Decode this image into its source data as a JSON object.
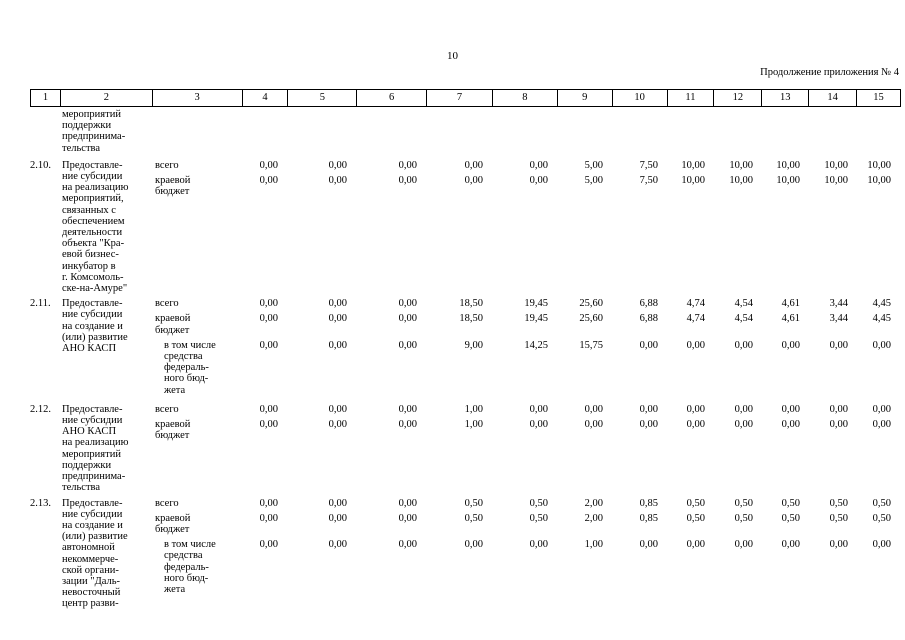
{
  "page": {
    "number": "10",
    "continuation_note": "Продолжение приложения № 4"
  },
  "table": {
    "column_numbers": [
      "1",
      "2",
      "3",
      "4",
      "5",
      "6",
      "7",
      "8",
      "9",
      "10",
      "11",
      "12",
      "13",
      "14",
      "15"
    ],
    "carryover": {
      "num": "",
      "title_lines": [
        "мероприятий",
        "поддержки",
        "предпринима-",
        "тельства"
      ],
      "subrows": []
    },
    "items": [
      {
        "num": "2.10.",
        "title_lines": [
          "Предоставле-",
          "ние субсидии",
          "на реализацию",
          "мероприятий,",
          "связанных с",
          "обеспечением",
          "деятельности",
          "объекта \"Кра-",
          "евой бизнес-",
          "инкубатор в",
          "г. Комсомоль-",
          "ске-на-Амуре\""
        ],
        "subrows": [
          {
            "label_lines": [
              "всего"
            ],
            "indent": false,
            "values": [
              "0,00",
              "0,00",
              "0,00",
              "0,00",
              "0,00",
              "5,00",
              "7,50",
              "10,00",
              "10,00",
              "10,00",
              "10,00",
              "10,00"
            ]
          },
          {
            "label_lines": [
              "краевой",
              "бюджет"
            ],
            "indent": false,
            "values": [
              "0,00",
              "0,00",
              "0,00",
              "0,00",
              "0,00",
              "5,00",
              "7,50",
              "10,00",
              "10,00",
              "10,00",
              "10,00",
              "10,00"
            ]
          }
        ]
      },
      {
        "num": "2.11.",
        "title_lines": [
          "Предоставле-",
          "ние субсидии",
          "на создание и",
          "(или) развитие",
          "АНО КАСП"
        ],
        "subrows": [
          {
            "label_lines": [
              "всего"
            ],
            "indent": false,
            "values": [
              "0,00",
              "0,00",
              "0,00",
              "18,50",
              "19,45",
              "25,60",
              "6,88",
              "4,74",
              "4,54",
              "4,61",
              "3,44",
              "4,45"
            ]
          },
          {
            "label_lines": [
              "краевой",
              "бюджет"
            ],
            "indent": false,
            "values": [
              "0,00",
              "0,00",
              "0,00",
              "18,50",
              "19,45",
              "25,60",
              "6,88",
              "4,74",
              "4,54",
              "4,61",
              "3,44",
              "4,45"
            ]
          },
          {
            "label_lines": [
              "в том числе",
              "средства",
              "федераль-",
              "ного бюд-",
              "жета"
            ],
            "indent": true,
            "values": [
              "0,00",
              "0,00",
              "0,00",
              "9,00",
              "14,25",
              "15,75",
              "0,00",
              "0,00",
              "0,00",
              "0,00",
              "0,00",
              "0,00"
            ]
          }
        ]
      },
      {
        "num": "2.12.",
        "title_lines": [
          "Предоставле-",
          "ние субсидии",
          "АНО КАСП",
          "на реализацию",
          "мероприятий",
          "поддержки",
          "предпринима-",
          "тельства"
        ],
        "subrows": [
          {
            "label_lines": [
              "всего"
            ],
            "indent": false,
            "values": [
              "0,00",
              "0,00",
              "0,00",
              "1,00",
              "0,00",
              "0,00",
              "0,00",
              "0,00",
              "0,00",
              "0,00",
              "0,00",
              "0,00"
            ]
          },
          {
            "label_lines": [
              "краевой",
              "бюджет"
            ],
            "indent": false,
            "values": [
              "0,00",
              "0,00",
              "0,00",
              "1,00",
              "0,00",
              "0,00",
              "0,00",
              "0,00",
              "0,00",
              "0,00",
              "0,00",
              "0,00"
            ]
          }
        ]
      },
      {
        "num": "2.13.",
        "title_lines": [
          "Предоставле-",
          "ние субсидии",
          "на создание и",
          "(или) развитие",
          "автономной",
          "некоммерче-",
          "ской органи-",
          "зации \"Даль-",
          "невосточный",
          "центр разви-"
        ],
        "subrows": [
          {
            "label_lines": [
              "всего"
            ],
            "indent": false,
            "values": [
              "0,00",
              "0,00",
              "0,00",
              "0,50",
              "0,50",
              "2,00",
              "0,85",
              "0,50",
              "0,50",
              "0,50",
              "0,50",
              "0,50"
            ]
          },
          {
            "label_lines": [
              "краевой",
              "бюджет"
            ],
            "indent": false,
            "values": [
              "0,00",
              "0,00",
              "0,00",
              "0,50",
              "0,50",
              "2,00",
              "0,85",
              "0,50",
              "0,50",
              "0,50",
              "0,50",
              "0,50"
            ]
          },
          {
            "label_lines": [
              "в том числе",
              "средства",
              "федераль-",
              "ного бюд-",
              "жета"
            ],
            "indent": true,
            "values": [
              "0,00",
              "0,00",
              "0,00",
              "0,00",
              "0,00",
              "1,00",
              "0,00",
              "0,00",
              "0,00",
              "0,00",
              "0,00",
              "0,00"
            ]
          }
        ]
      }
    ]
  }
}
